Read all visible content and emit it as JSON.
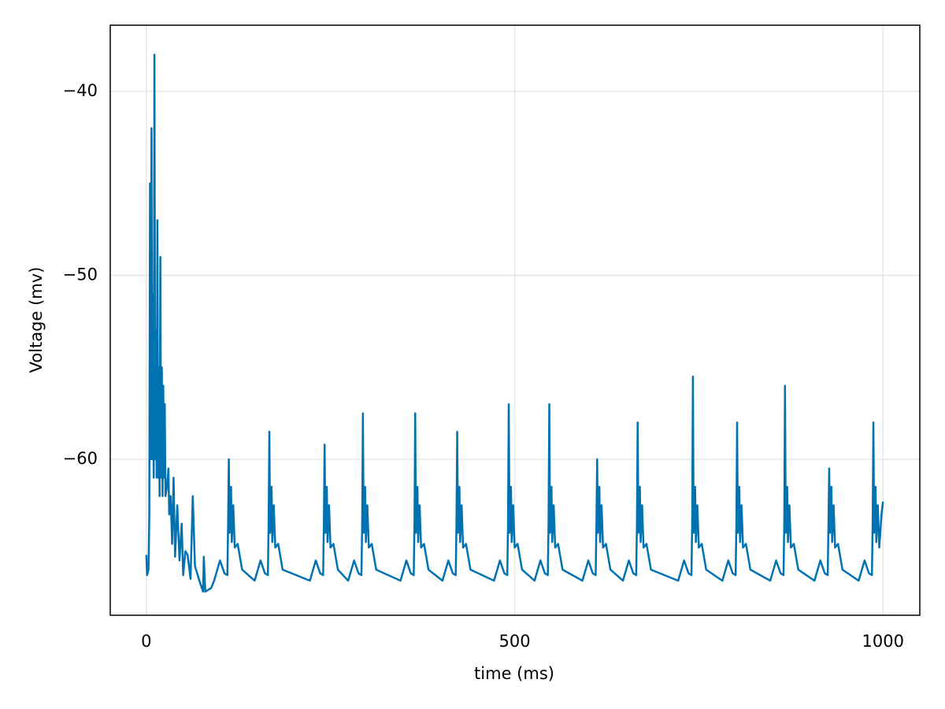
{
  "chart_data": {
    "type": "line",
    "x_label": "time (ms)",
    "y_label": "Voltage (mv)",
    "color": "#0072b2",
    "xlim": [
      -49,
      1050
    ],
    "ylim": [
      -68.48,
      -36.4
    ],
    "xticks": [
      0,
      500,
      1000
    ],
    "yticks": [
      {
        "value": -60,
        "label": "−60"
      },
      {
        "value": -50,
        "label": "−50"
      },
      {
        "value": -40,
        "label": "−40"
      }
    ],
    "grid": true,
    "x": [
      0,
      1,
      3,
      4,
      5,
      6,
      7,
      8,
      9,
      10,
      11,
      12,
      13,
      14,
      15,
      16,
      17,
      18,
      19,
      20,
      21,
      22,
      23,
      24,
      25,
      26,
      28,
      30,
      31,
      33,
      35,
      37,
      39,
      42,
      45,
      48,
      50,
      53,
      56,
      60,
      63,
      66,
      72,
      77,
      78,
      80,
      88,
      92,
      100,
      106,
      110,
      111,
      112,
      113,
      115,
      116,
      118,
      120,
      124,
      130,
      147,
      155,
      161,
      165,
      166,
      167,
      168,
      170,
      171,
      173,
      175,
      179,
      185,
      222,
      230,
      236,
      240,
      241,
      242,
      243,
      245,
      246,
      248,
      250,
      254,
      260,
      274,
      282,
      288,
      292,
      293,
      294,
      295,
      297,
      298,
      300,
      302,
      306,
      312,
      345,
      353,
      359,
      363,
      364,
      365,
      366,
      368,
      369,
      371,
      373,
      377,
      383,
      402,
      410,
      416,
      420,
      421,
      422,
      423,
      425,
      426,
      428,
      430,
      434,
      440,
      472,
      480,
      486,
      490,
      491,
      492,
      493,
      495,
      496,
      498,
      500,
      504,
      510,
      527,
      535,
      541,
      545,
      546,
      547,
      548,
      550,
      551,
      553,
      555,
      559,
      565,
      592,
      600,
      606,
      610,
      611,
      612,
      613,
      615,
      616,
      618,
      620,
      624,
      630,
      647,
      655,
      661,
      665,
      666,
      667,
      668,
      670,
      671,
      673,
      675,
      679,
      685,
      722,
      730,
      736,
      740,
      741,
      742,
      743,
      745,
      746,
      748,
      750,
      754,
      760,
      782,
      790,
      796,
      800,
      801,
      802,
      803,
      805,
      806,
      808,
      810,
      814,
      820,
      847,
      855,
      861,
      865,
      866,
      867,
      868,
      870,
      871,
      873,
      875,
      879,
      885,
      907,
      915,
      921,
      925,
      926,
      927,
      928,
      930,
      931,
      933,
      935,
      939,
      945,
      967,
      975,
      981,
      985,
      986,
      987,
      988,
      990,
      991,
      993,
      995,
      998,
      1000
    ],
    "values": [
      -65.2,
      -66.3,
      -66,
      -63,
      -45,
      -60,
      -42,
      -60,
      -51,
      -61,
      -38,
      -60,
      -53,
      -61,
      -47,
      -61,
      -55,
      -62,
      -49,
      -61,
      -55,
      -62,
      -56,
      -61,
      -57,
      -62,
      -61.5,
      -60.5,
      -63,
      -62,
      -64.6,
      -61,
      -65.3,
      -62.5,
      -65.5,
      -63.5,
      -66.3,
      -65,
      -65.2,
      -66.5,
      -62,
      -65.8,
      -66.6,
      -67.2,
      -65.3,
      -67.2,
      -67.0,
      -66.6,
      -65.5,
      -66.2,
      -66.3,
      -63.5,
      -60.0,
      -64,
      -61.5,
      -64.5,
      -62.5,
      -64.8,
      -64.6,
      -66.0,
      -66.6,
      -65.5,
      -66.2,
      -66.3,
      -63.5,
      -58.5,
      -64,
      -61.5,
      -64.5,
      -62.5,
      -64.8,
      -64.6,
      -66.0,
      -66.6,
      -65.5,
      -66.2,
      -66.3,
      -63.5,
      -59.2,
      -64,
      -61.5,
      -64.5,
      -62.5,
      -64.8,
      -64.6,
      -66.0,
      -66.6,
      -65.5,
      -66.2,
      -66.3,
      -63.5,
      -57.5,
      -64,
      -61.5,
      -64.5,
      -62.5,
      -64.8,
      -64.6,
      -66.0,
      -66.6,
      -65.5,
      -66.2,
      -66.3,
      -63.5,
      -57.5,
      -64,
      -61.5,
      -64.5,
      -62.5,
      -64.8,
      -64.6,
      -66.0,
      -66.6,
      -65.5,
      -66.2,
      -66.3,
      -63.5,
      -58.5,
      -64,
      -61.5,
      -64.5,
      -62.5,
      -64.8,
      -64.6,
      -66.0,
      -66.6,
      -65.5,
      -66.2,
      -66.3,
      -63.5,
      -57.0,
      -64,
      -61.5,
      -64.5,
      -62.5,
      -64.8,
      -64.6,
      -66.0,
      -66.6,
      -65.5,
      -66.2,
      -66.3,
      -63.5,
      -57.0,
      -64,
      -61.5,
      -64.5,
      -62.5,
      -64.8,
      -64.6,
      -66.0,
      -66.6,
      -65.5,
      -66.2,
      -66.3,
      -63.5,
      -60.0,
      -64,
      -61.5,
      -64.5,
      -62.5,
      -64.8,
      -64.6,
      -66.0,
      -66.6,
      -65.5,
      -66.2,
      -66.3,
      -63.5,
      -58.0,
      -64,
      -61.5,
      -64.5,
      -62.5,
      -64.8,
      -64.6,
      -66.0,
      -66.6,
      -65.5,
      -66.2,
      -66.3,
      -63.5,
      -55.5,
      -64,
      -61.5,
      -64.5,
      -62.5,
      -64.8,
      -64.6,
      -66.0,
      -66.6,
      -65.5,
      -66.2,
      -66.3,
      -63.5,
      -58.0,
      -64,
      -61.5,
      -64.5,
      -62.5,
      -64.8,
      -64.6,
      -66.0,
      -66.6,
      -65.5,
      -66.2,
      -66.3,
      -63.5,
      -56.0,
      -64,
      -61.5,
      -64.5,
      -62.5,
      -64.8,
      -64.6,
      -66.0,
      -66.6,
      -65.5,
      -66.2,
      -66.3,
      -63.5,
      -60.5,
      -64,
      -61.5,
      -64.5,
      -62.5,
      -64.8,
      -64.6,
      -66.0,
      -66.6,
      -65.5,
      -66.2,
      -66.3,
      -63.5,
      -58.0,
      -64,
      -61.5,
      -64.5,
      -62.5,
      -64.8,
      -63.0,
      -62.3
    ]
  }
}
